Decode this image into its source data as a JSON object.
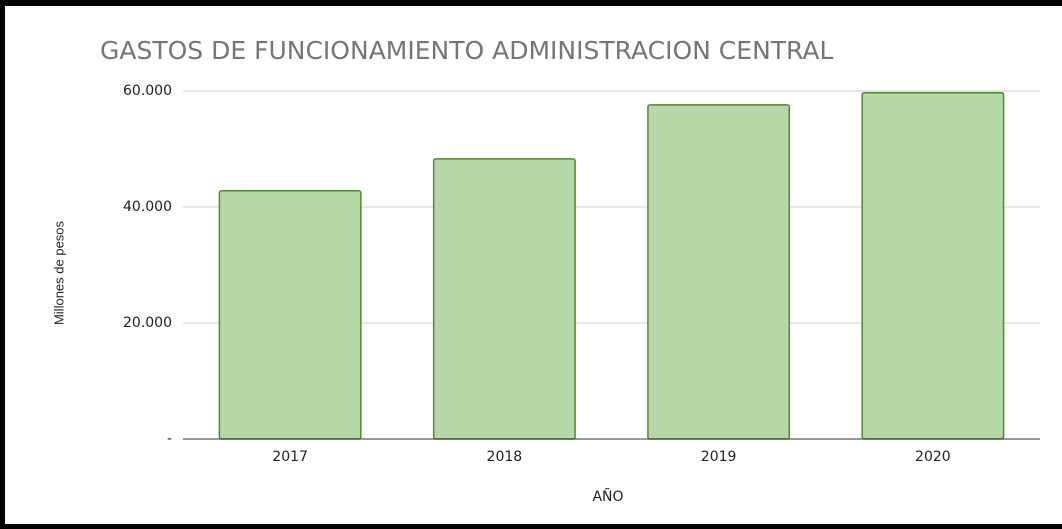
{
  "chart_data": {
    "type": "bar",
    "title": "GASTOS DE FUNCIONAMIENTO ADMINISTRACION CENTRAL",
    "x_label": "AÑO",
    "y_label": "Millones de pesos",
    "categories": [
      "2017",
      "2018",
      "2019",
      "2020"
    ],
    "values": [
      42800,
      48300,
      57600,
      59700
    ],
    "color": "#b6d7a8",
    "edge_color": "#4e8a2e",
    "ylim": [
      0,
      60000
    ],
    "yticks": [
      {
        "value": 0,
        "label": "-"
      },
      {
        "value": 20000,
        "label": "20.000"
      },
      {
        "value": 40000,
        "label": "40.000"
      },
      {
        "value": 60000,
        "label": "60.000"
      }
    ],
    "grid": true
  }
}
